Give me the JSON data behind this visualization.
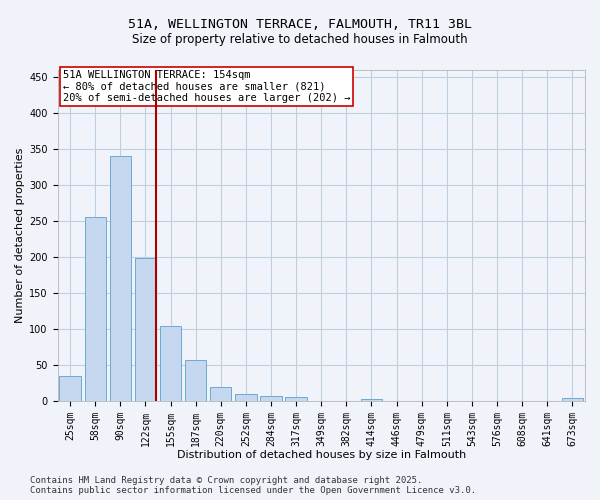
{
  "title_line1": "51A, WELLINGTON TERRACE, FALMOUTH, TR11 3BL",
  "title_line2": "Size of property relative to detached houses in Falmouth",
  "xlabel": "Distribution of detached houses by size in Falmouth",
  "ylabel": "Number of detached properties",
  "categories": [
    "25sqm",
    "58sqm",
    "90sqm",
    "122sqm",
    "155sqm",
    "187sqm",
    "220sqm",
    "252sqm",
    "284sqm",
    "317sqm",
    "349sqm",
    "382sqm",
    "414sqm",
    "446sqm",
    "479sqm",
    "511sqm",
    "543sqm",
    "576sqm",
    "608sqm",
    "641sqm",
    "673sqm"
  ],
  "values": [
    35,
    256,
    341,
    198,
    104,
    57,
    19,
    10,
    7,
    5,
    0,
    0,
    3,
    0,
    0,
    0,
    0,
    0,
    0,
    0,
    4
  ],
  "bar_color": "#c5d8ef",
  "bar_edge_color": "#6aaad4",
  "vline_color": "#aa0000",
  "annotation_text": "51A WELLINGTON TERRACE: 154sqm\n← 80% of detached houses are smaller (821)\n20% of semi-detached houses are larger (202) →",
  "annotation_box_color": "#ffffff",
  "annotation_box_edge": "#cc0000",
  "ylim": [
    0,
    460
  ],
  "yticks": [
    0,
    50,
    100,
    150,
    200,
    250,
    300,
    350,
    400,
    450
  ],
  "bg_color": "#f0f4fa",
  "plot_bg_color": "#f0f4fa",
  "grid_color": "#c0cfe0",
  "footer_line1": "Contains HM Land Registry data © Crown copyright and database right 2025.",
  "footer_line2": "Contains public sector information licensed under the Open Government Licence v3.0.",
  "title_fontsize": 9.5,
  "subtitle_fontsize": 8.5,
  "axis_label_fontsize": 8,
  "tick_fontsize": 7,
  "annotation_fontsize": 7.5,
  "footer_fontsize": 6.5
}
